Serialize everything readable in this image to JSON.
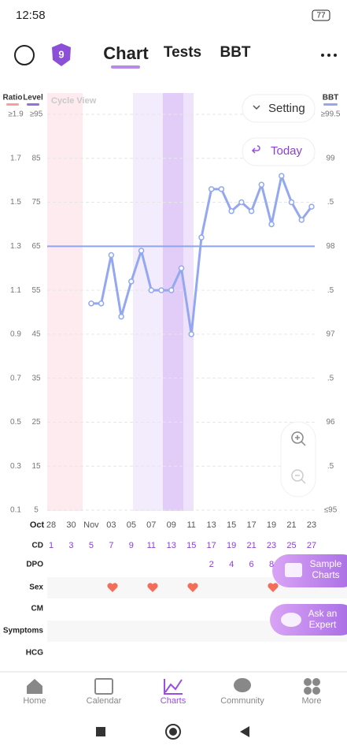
{
  "status_bar": {
    "time": "12:58",
    "battery": "77"
  },
  "header": {
    "badge": "9",
    "tabs": [
      "Chart",
      "Tests",
      "BBT"
    ]
  },
  "controls": {
    "setting": "Setting",
    "today": "Today",
    "cycle_view": "Cycle View"
  },
  "chart_data": {
    "type": "line",
    "ylabel": "BBT",
    "ylim": [
      95,
      99.5
    ],
    "yticks": [
      {
        "value": 99.5,
        "label": "≥99.5"
      },
      99,
      {
        "value": 98.5,
        "label": ".5"
      },
      98,
      {
        "value": 97.5,
        "label": ".5"
      },
      97,
      {
        "value": 96.5,
        "label": ".5"
      },
      96,
      {
        "value": 95.5,
        "label": ".5"
      },
      {
        "value": 95,
        "label": "≤95"
      }
    ],
    "ratio_axis": {
      "label": "Ratio",
      "color": "#f4a09a",
      "lim": [
        0.1,
        1.9
      ],
      "ticks": [
        {
          "value": 1.9,
          "label": "≥1.9"
        },
        1.7,
        1.5,
        1.3,
        1.1,
        0.9,
        0.7,
        0.5,
        0.3,
        0.1
      ]
    },
    "level_axis": {
      "label": "Level",
      "color": "#9b6be0",
      "lim": [
        5,
        95
      ],
      "ticks": [
        {
          "value": 95,
          "label": "≥95"
        },
        85,
        75,
        65,
        55,
        45,
        35,
        25,
        15,
        5
      ]
    },
    "month_label": "Oct",
    "categories": [
      "28",
      null,
      "30",
      null,
      "Nov",
      null,
      "03",
      null,
      "05",
      null,
      "07",
      null,
      "09",
      null,
      "11",
      null,
      "13",
      null,
      "15",
      null,
      "17",
      null,
      "19",
      null,
      "21",
      null,
      "23"
    ],
    "series": [
      {
        "name": "BBT",
        "color": "#93a8f0",
        "values": [
          null,
          null,
          null,
          null,
          97.35,
          97.35,
          97.9,
          97.2,
          97.6,
          97.95,
          97.5,
          97.5,
          97.5,
          97.75,
          97.0,
          98.1,
          98.65,
          98.65,
          98.4,
          98.5,
          98.4,
          98.7,
          98.25,
          98.8,
          98.5,
          98.3,
          98.45
        ]
      }
    ],
    "coverline": 98,
    "grid": true,
    "rows": {
      "labels": [
        "CD",
        "DPO",
        "Sex",
        "CM",
        "Symptoms",
        "HCG"
      ],
      "cd": [
        1,
        null,
        3,
        null,
        5,
        null,
        7,
        null,
        9,
        null,
        11,
        null,
        13,
        null,
        15,
        null,
        17,
        null,
        19,
        null,
        21,
        null,
        23,
        null,
        25,
        null,
        27
      ],
      "dpo": [
        null,
        null,
        null,
        null,
        null,
        null,
        null,
        null,
        null,
        null,
        null,
        null,
        null,
        null,
        null,
        null,
        2,
        null,
        4,
        null,
        6,
        null,
        8,
        null,
        null,
        null,
        null
      ]
    }
  },
  "floating": [
    "Sample Charts",
    "Ask an Expert"
  ],
  "nav": [
    "Home",
    "Calendar",
    "Charts",
    "Community",
    "More"
  ]
}
